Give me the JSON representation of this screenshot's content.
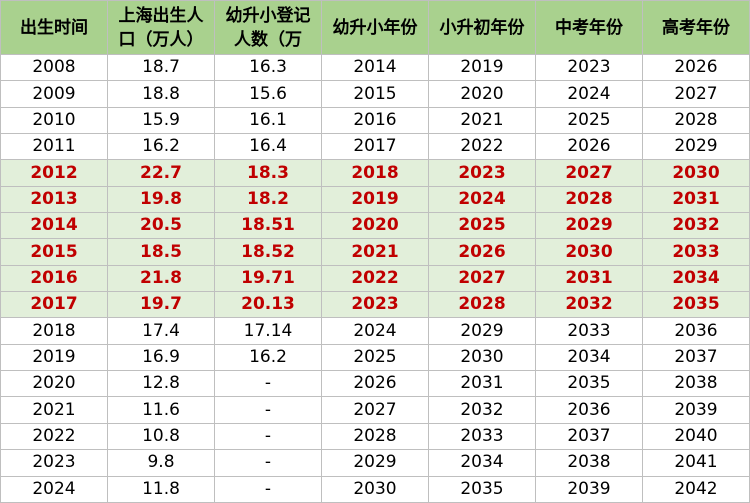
{
  "table": {
    "header": [
      "出生时间",
      "上海出生人口（万人）",
      "幼升小登记人数（万",
      "幼升小年份",
      "小升初年份",
      "中考年份",
      "高考年份"
    ],
    "rows": [
      [
        "2008",
        "18.7",
        "16.3",
        "2014",
        "2019",
        "2023",
        "2026"
      ],
      [
        "2009",
        "18.8",
        "15.6",
        "2015",
        "2020",
        "2024",
        "2027"
      ],
      [
        "2010",
        "15.9",
        "16.1",
        "2016",
        "2021",
        "2025",
        "2028"
      ],
      [
        "2011",
        "16.2",
        "16.4",
        "2017",
        "2022",
        "2026",
        "2029"
      ],
      [
        "2012",
        "22.7",
        "18.3",
        "2018",
        "2023",
        "2027",
        "2030"
      ],
      [
        "2013",
        "19.8",
        "18.2",
        "2019",
        "2024",
        "2028",
        "2031"
      ],
      [
        "2014",
        "20.5",
        "18.51",
        "2020",
        "2025",
        "2029",
        "2032"
      ],
      [
        "2015",
        "18.5",
        "18.52",
        "2021",
        "2026",
        "2030",
        "2033"
      ],
      [
        "2016",
        "21.8",
        "19.71",
        "2022",
        "2027",
        "2031",
        "2034"
      ],
      [
        "2017",
        "19.7",
        "20.13",
        "2023",
        "2028",
        "2032",
        "2035"
      ],
      [
        "2018",
        "17.4",
        "17.14",
        "2024",
        "2029",
        "2033",
        "2036"
      ],
      [
        "2019",
        "16.9",
        "16.2",
        "2025",
        "2030",
        "2034",
        "2037"
      ],
      [
        "2020",
        "12.8",
        "-",
        "2026",
        "2031",
        "2035",
        "2038"
      ],
      [
        "2021",
        "11.6",
        "-",
        "2027",
        "2032",
        "2036",
        "2039"
      ],
      [
        "2022",
        "10.8",
        "-",
        "2028",
        "2033",
        "2037",
        "2040"
      ],
      [
        "2023",
        "9.8",
        "-",
        "2029",
        "2034",
        "2038",
        "2041"
      ],
      [
        "2024",
        "11.8",
        "-",
        "2030",
        "2035",
        "2039",
        "2042"
      ]
    ],
    "highlight_rows": [
      4,
      5,
      6,
      7,
      8,
      9
    ],
    "header_color": "#a9d18e",
    "highlight_color": "#e2efda",
    "highlight_text_color": "#c00000"
  }
}
